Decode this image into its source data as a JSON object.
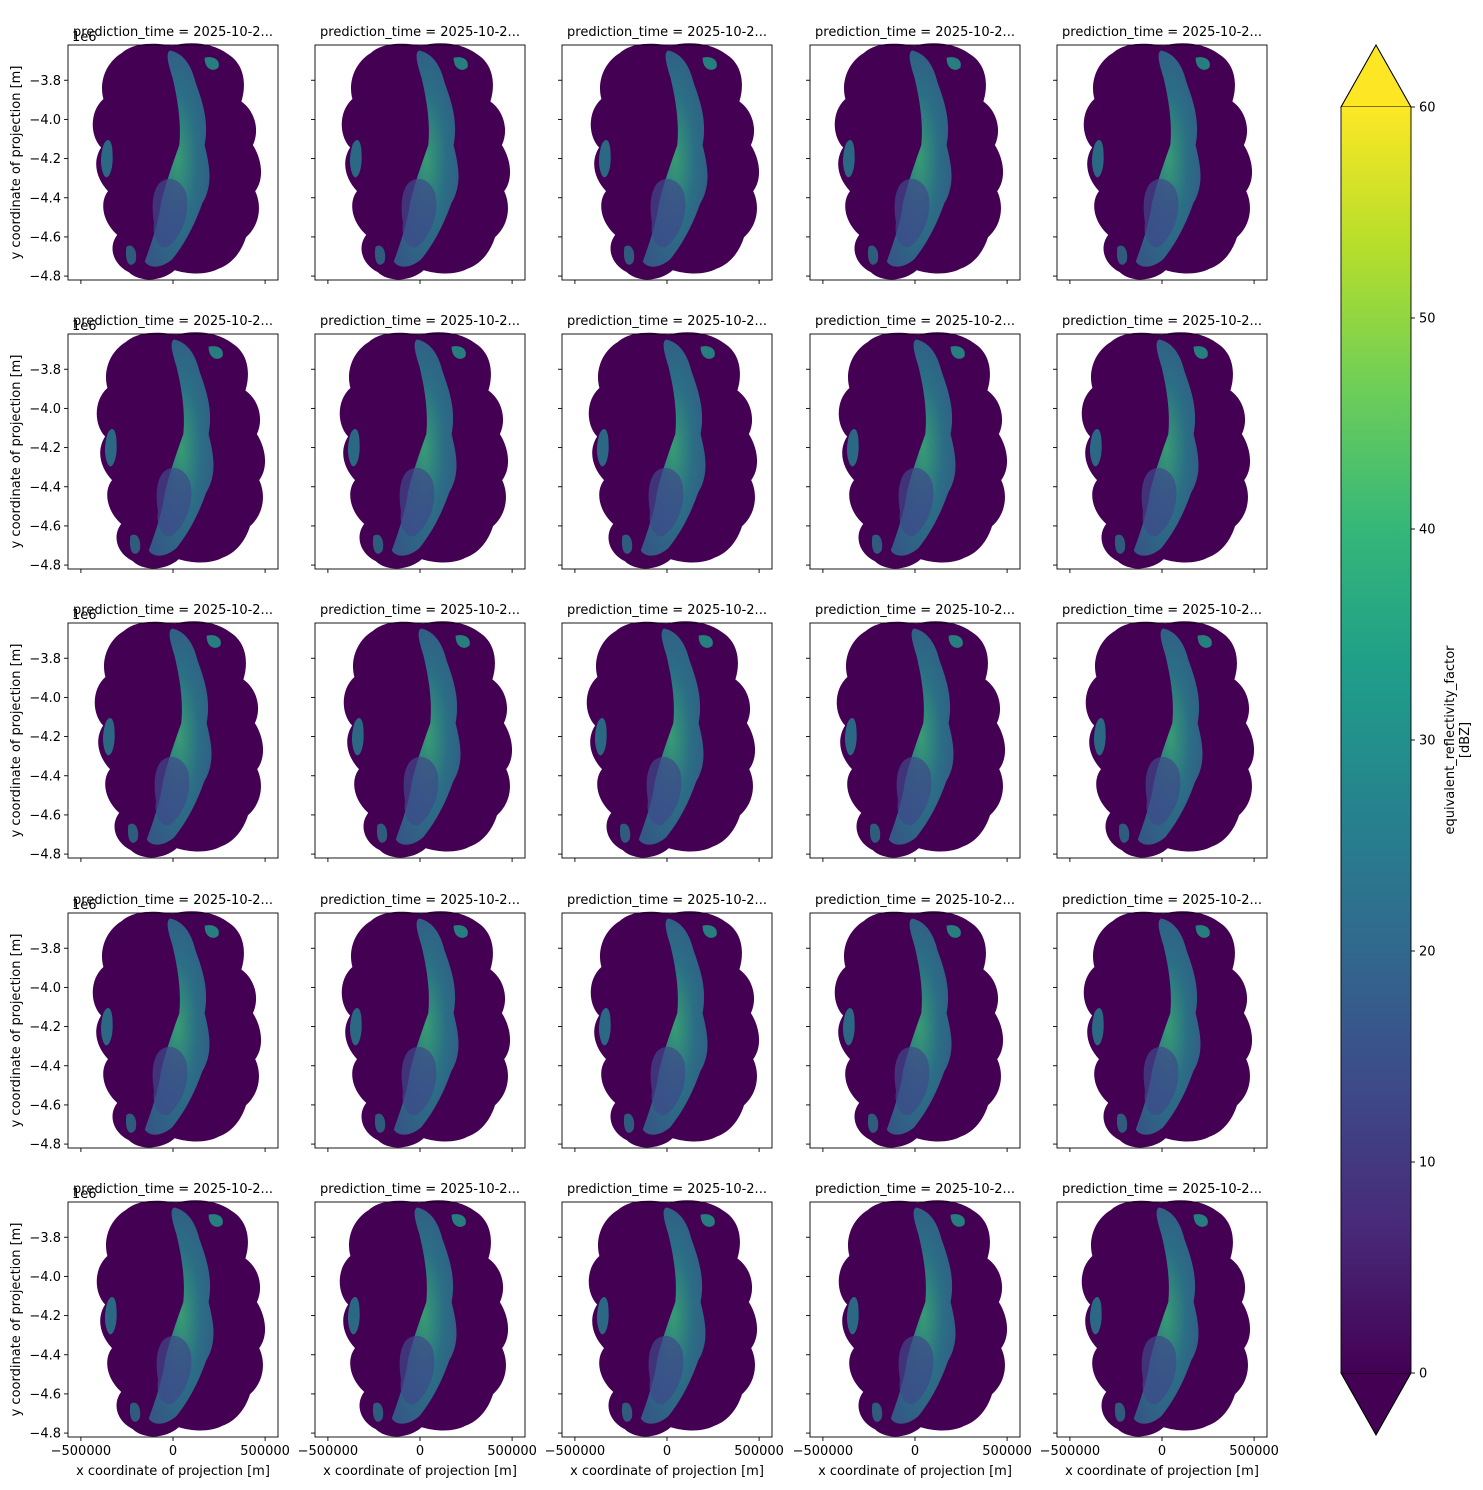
{
  "chart_data": {
    "type": "heatmap",
    "layout": {
      "rows": 5,
      "cols": 5
    },
    "panel_title": "prediction_time = 2025-10-2...",
    "xlabel": "x coordinate of projection [m]",
    "ylabel": "y coordinate of projection [m]",
    "x_ticks": [
      -500000,
      0,
      500000
    ],
    "x_tick_labels": [
      "−500000",
      "0",
      "500000"
    ],
    "xlim": [
      -570000,
      570000
    ],
    "y_ticks": [
      -3.8,
      -4.0,
      -4.2,
      -4.4,
      -4.6,
      -4.8
    ],
    "y_tick_labels": [
      "−3.8",
      "−4.0",
      "−4.2",
      "−4.4",
      "−4.6",
      "−4.8"
    ],
    "ylim": [
      -4.82,
      -3.62
    ],
    "y_offset_label": "1e6",
    "sharex": true,
    "sharey": true,
    "colorbar": {
      "label": "equivalent_reflectivity_factor",
      "unit_label": "[dBZ]",
      "ticks": [
        0,
        10,
        20,
        30,
        40,
        50,
        60
      ],
      "tick_labels": [
        "0",
        "10",
        "20",
        "30",
        "40",
        "50",
        "60"
      ],
      "range": [
        0,
        60
      ],
      "extend": "both",
      "colormap": "viridis",
      "colormap_stops": [
        "#440154",
        "#482878",
        "#3e4989",
        "#31688e",
        "#26828e",
        "#1f9e89",
        "#35b779",
        "#6ece58",
        "#b5de2b",
        "#fde725"
      ]
    },
    "panels": 25
  }
}
